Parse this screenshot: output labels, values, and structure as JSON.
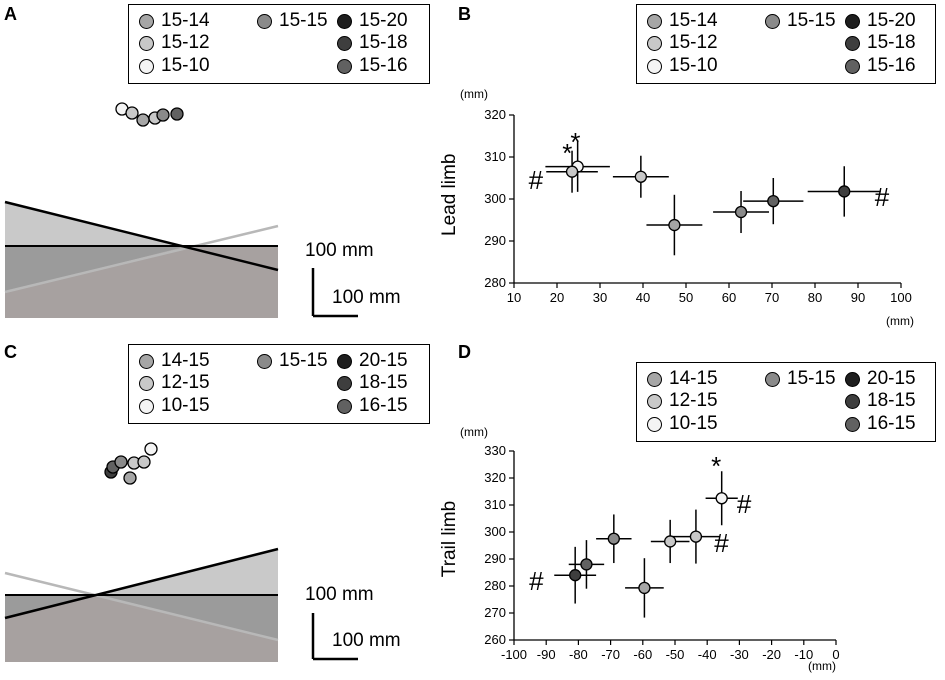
{
  "panels": {
    "A": {
      "letter": "A",
      "legend": [
        "15-14",
        "15-15",
        "15-20",
        "15-12",
        "15-18",
        "15-10",
        "15-16"
      ],
      "scale_labels": [
        "100 mm",
        "100 mm"
      ]
    },
    "B": {
      "letter": "B",
      "legend": [
        "15-14",
        "15-15",
        "15-20",
        "15-12",
        "15-18",
        "15-10",
        "15-16"
      ]
    },
    "C": {
      "letter": "C",
      "legend": [
        "14-15",
        "15-15",
        "20-15",
        "12-15",
        "18-15",
        "10-15",
        "16-15"
      ],
      "scale_labels": [
        "100 mm",
        "100 mm"
      ]
    },
    "D": {
      "letter": "D",
      "legend": [
        "14-15",
        "15-15",
        "20-15",
        "12-15",
        "18-15",
        "10-15",
        "16-15"
      ]
    }
  },
  "colors": {
    "c10": "#f4f4f4",
    "c12": "#c8c8c8",
    "c14": "#a6a6a6",
    "c15": "#8a8a8a",
    "c16": "#616161",
    "c18": "#3e3e3e",
    "c20": "#1e1e1e",
    "band_light": "#c9c9c9",
    "band_mid": "#9b9b9b",
    "band_dark": "#a7a1a0",
    "line_gray": "#b8b8b8"
  },
  "chart_data": [
    {
      "panel": "B",
      "type": "scatter",
      "xlabel": "(mm)",
      "ylabel": "Lead limb",
      "yunit": "(mm)",
      "xlim": [
        10,
        100
      ],
      "ylim": [
        280,
        320
      ],
      "xticks": [
        10,
        20,
        30,
        40,
        50,
        60,
        70,
        80,
        90,
        100
      ],
      "yticks": [
        280,
        290,
        300,
        310,
        320
      ],
      "points": [
        {
          "label": "15-10",
          "x": 24.8,
          "y": 307.7,
          "xerr": 7.5,
          "yerr": 6,
          "color": "c10"
        },
        {
          "label": "15-12",
          "x": 23.5,
          "y": 306.5,
          "xerr": 6,
          "yerr": 5,
          "color": "c12"
        },
        {
          "label": "15-14",
          "x": 39.5,
          "y": 305.3,
          "xerr": 6.5,
          "yerr": 5,
          "color": "c12"
        },
        {
          "label": "15-15",
          "x": 47.3,
          "y": 293.8,
          "xerr": 6.5,
          "yerr": 7.2,
          "color": "c14"
        },
        {
          "label": "15-16",
          "x": 62.8,
          "y": 296.9,
          "xerr": 6.5,
          "yerr": 5,
          "color": "c15"
        },
        {
          "label": "15-18",
          "x": 70.3,
          "y": 299.5,
          "xerr": 7,
          "yerr": 5.5,
          "color": "c16"
        },
        {
          "label": "15-20",
          "x": 86.8,
          "y": 301.8,
          "xerr": 8.5,
          "yerr": 6,
          "color": "c18"
        }
      ],
      "annotations": [
        {
          "text": "*",
          "x": 23.3,
          "y": 311
        },
        {
          "text": "*",
          "x": 25.2,
          "y": 313.5
        },
        {
          "text": "#",
          "x": 15.5,
          "y": 304.5
        },
        {
          "text": "#",
          "x": 96,
          "y": 300.5
        }
      ]
    },
    {
      "panel": "D",
      "type": "scatter",
      "xlabel": "(mm)",
      "ylabel": "Trail limb",
      "yunit": "(mm)",
      "xlim": [
        -100,
        0
      ],
      "ylim": [
        260,
        330
      ],
      "xticks": [
        -100,
        -90,
        -80,
        -70,
        -60,
        -50,
        -40,
        -30,
        -20,
        -10,
        0
      ],
      "yticks": [
        260,
        270,
        280,
        290,
        300,
        310,
        320,
        330
      ],
      "points": [
        {
          "label": "10-15",
          "x": -35.5,
          "y": 312.5,
          "xerr": 5,
          "yerr": 10,
          "color": "c10"
        },
        {
          "label": "12-15",
          "x": -43.5,
          "y": 298.3,
          "xerr": 7.5,
          "yerr": 10,
          "color": "c12"
        },
        {
          "label": "14-15",
          "x": -51.5,
          "y": 296.5,
          "xerr": 6,
          "yerr": 8,
          "color": "c12"
        },
        {
          "label": "15-15",
          "x": -59.5,
          "y": 279.3,
          "xerr": 6,
          "yerr": 11,
          "color": "c14"
        },
        {
          "label": "16-15",
          "x": -69,
          "y": 297.5,
          "xerr": 5.5,
          "yerr": 9,
          "color": "c15"
        },
        {
          "label": "18-15",
          "x": -77.5,
          "y": 288,
          "xerr": 5.5,
          "yerr": 9,
          "color": "c16"
        },
        {
          "label": "20-15",
          "x": -81,
          "y": 284,
          "xerr": 6.5,
          "yerr": 10.5,
          "color": "c18"
        }
      ],
      "annotations": [
        {
          "text": "*",
          "x": -36,
          "y": 324.5
        },
        {
          "text": "#",
          "x": -28,
          "y": 310.5
        },
        {
          "text": "#",
          "x": -35,
          "y": 296
        },
        {
          "text": "#",
          "x": -92.5,
          "y": 282
        }
      ]
    }
  ]
}
